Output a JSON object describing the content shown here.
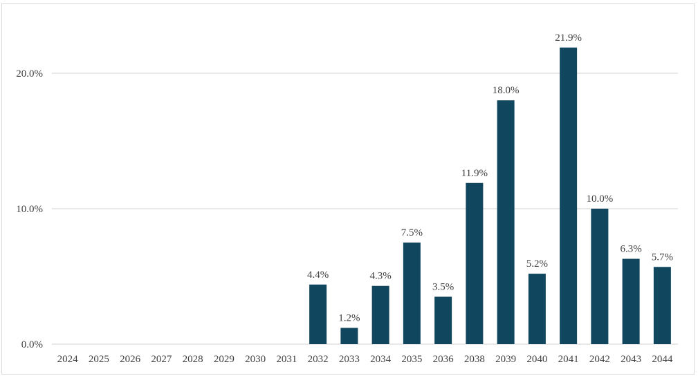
{
  "chart_data": {
    "type": "bar",
    "title": "",
    "xlabel": "",
    "ylabel": "",
    "categories": [
      "2024",
      "2025",
      "2026",
      "2027",
      "2028",
      "2029",
      "2030",
      "2031",
      "2032",
      "2033",
      "2034",
      "2035",
      "2036",
      "2038",
      "2039",
      "2040",
      "2041",
      "2042",
      "2043",
      "2044"
    ],
    "values": [
      null,
      null,
      null,
      null,
      null,
      null,
      null,
      null,
      4.4,
      1.2,
      4.3,
      7.5,
      3.5,
      11.9,
      18.0,
      5.2,
      21.9,
      10.0,
      6.3,
      5.7
    ],
    "value_labels": [
      "",
      "",
      "",
      "",
      "",
      "",
      "",
      "",
      "4.4%",
      "1.2%",
      "4.3%",
      "7.5%",
      "3.5%",
      "11.9%",
      "18.0%",
      "5.2%",
      "21.9%",
      "10.0%",
      "6.3%",
      "5.7%"
    ],
    "ylim": [
      0,
      22.3
    ],
    "yticks": [
      0,
      10,
      20
    ],
    "ytick_labels": [
      "0.0%",
      "10.0%",
      "20.0%"
    ],
    "grid": true,
    "legend": "none",
    "bar_color": "#11465f",
    "grid_color": "#d9d9d9"
  }
}
